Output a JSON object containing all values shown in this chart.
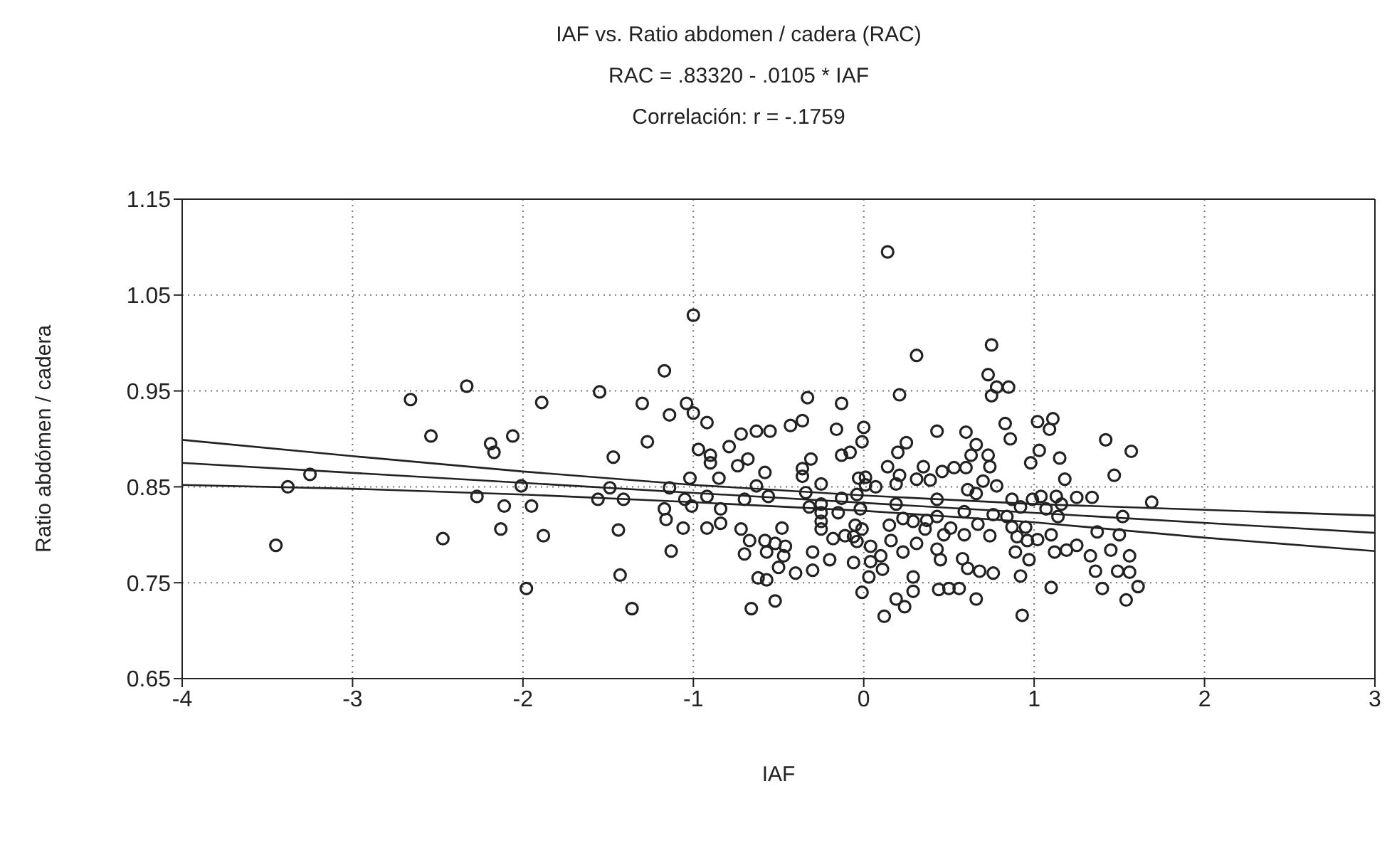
{
  "chart_data": {
    "type": "scatter",
    "title": "IAF vs. Ratio abdomen / cadera (RAC)",
    "subtitle": "RAC = .83320 - .0105 * IAF",
    "annotations": [
      "Correlación: r = -.1759"
    ],
    "xlabel": "IAF",
    "ylabel": "Ratio abdómen / cadera",
    "xlim": [
      -4,
      3
    ],
    "xticks": [
      -4,
      -3,
      -2,
      -1,
      0,
      1,
      2,
      3
    ],
    "ylim": [
      0.65,
      1.15
    ],
    "yticks": [
      {
        "value": 0.65,
        "label": "0.65"
      },
      {
        "value": 0.75,
        "label": "0.75"
      },
      {
        "value": 0.85,
        "label": "0.85"
      },
      {
        "value": 0.95,
        "label": "0.95"
      },
      {
        "value": 1.05,
        "label": "1.05"
      },
      {
        "value": 1.15,
        "label": "1.15"
      }
    ],
    "grid": true,
    "legend": false,
    "series": [
      {
        "marker": "circle",
        "color": "#222222",
        "x": [
          -3.45,
          -3.38,
          -3.25,
          -2.66,
          -2.54,
          -2.47,
          -2.33,
          -2.27,
          -2.19,
          -2.17,
          -2.13,
          -2.11,
          -2.06,
          -2.01,
          -1.98,
          -1.95,
          -1.89,
          -1.88,
          -1.55,
          -1.47,
          -1.49,
          -1.56,
          -1.41,
          -1.44,
          -1.43,
          -1.36,
          -1.3,
          -1.27,
          -1.17,
          -1.14,
          -1.14,
          -1.17,
          -1.16,
          -1.13,
          -1.05,
          -1.06,
          -1.04,
          -1.0,
          -1.0,
          -1.02,
          -1.01,
          -0.97,
          -0.92,
          -0.9,
          -0.9,
          -0.92,
          -0.92,
          -0.85,
          -0.84,
          -0.84,
          -0.79,
          -0.74,
          -0.72,
          -0.68,
          -0.7,
          -0.72,
          -0.67,
          -0.7,
          -0.63,
          -0.63,
          -0.58,
          -0.58,
          -0.57,
          -0.55,
          -0.56,
          -0.62,
          -0.57,
          -0.66,
          -0.52,
          -0.48,
          -0.52,
          -0.46,
          -0.47,
          -0.5,
          -0.43,
          -0.36,
          -0.4,
          -0.33,
          -0.31,
          -0.36,
          -0.36,
          -0.34,
          -0.32,
          -0.3,
          -0.3,
          -0.25,
          -0.25,
          -0.25,
          -0.25,
          -0.25,
          -0.2,
          -0.18,
          -0.15,
          -0.13,
          -0.13,
          -0.13,
          -0.16,
          -0.11,
          -0.08,
          -0.06,
          -0.06,
          -0.05,
          -0.04,
          0.14,
          0.0,
          -0.01,
          -0.03,
          0.01,
          0.01,
          0.07,
          -0.04,
          -0.02,
          -0.01,
          0.04,
          0.04,
          0.1,
          0.11,
          0.03,
          -0.01,
          0.12,
          0.14,
          0.15,
          0.16,
          0.19,
          0.19,
          0.2,
          0.21,
          0.21,
          0.19,
          0.23,
          0.23,
          0.24,
          0.25,
          0.29,
          0.29,
          0.29,
          0.31,
          0.31,
          0.31,
          0.35,
          0.36,
          0.37,
          0.39,
          0.43,
          0.43,
          0.43,
          0.43,
          0.45,
          0.44,
          0.46,
          0.47,
          0.51,
          0.5,
          0.53,
          0.56,
          0.58,
          0.59,
          0.59,
          0.6,
          0.6,
          0.61,
          0.61,
          0.63,
          0.66,
          0.66,
          0.66,
          0.67,
          0.68,
          0.7,
          0.73,
          0.73,
          0.75,
          0.74,
          0.74,
          0.75,
          0.76,
          0.76,
          0.78,
          0.78,
          0.83,
          0.84,
          0.85,
          0.86,
          0.87,
          0.87,
          0.89,
          0.9,
          0.92,
          0.92,
          0.93,
          0.95,
          0.96,
          0.97,
          0.98,
          0.99,
          1.02,
          1.03,
          1.02,
          1.04,
          1.07,
          1.09,
          1.11,
          1.1,
          1.1,
          1.12,
          1.13,
          1.14,
          1.15,
          1.16,
          1.18,
          1.19,
          1.25,
          1.25,
          1.33,
          1.34,
          1.36,
          1.37,
          1.4,
          1.42,
          1.45,
          1.47,
          1.49,
          1.5,
          1.52,
          1.54,
          1.56,
          1.57,
          1.56,
          1.61,
          1.69
        ],
        "values": [
          0.789,
          0.85,
          0.863,
          0.941,
          0.903,
          0.796,
          0.955,
          0.84,
          0.895,
          0.886,
          0.806,
          0.83,
          0.903,
          0.851,
          0.744,
          0.83,
          0.938,
          0.799,
          0.949,
          0.881,
          0.849,
          0.837,
          0.837,
          0.805,
          0.758,
          0.723,
          0.937,
          0.897,
          0.971,
          0.925,
          0.849,
          0.827,
          0.816,
          0.783,
          0.837,
          0.807,
          0.937,
          0.927,
          1.029,
          0.859,
          0.83,
          0.889,
          0.917,
          0.883,
          0.875,
          0.84,
          0.807,
          0.859,
          0.827,
          0.812,
          0.892,
          0.872,
          0.905,
          0.879,
          0.837,
          0.806,
          0.794,
          0.78,
          0.908,
          0.851,
          0.865,
          0.794,
          0.782,
          0.908,
          0.84,
          0.755,
          0.753,
          0.723,
          0.731,
          0.807,
          0.791,
          0.788,
          0.778,
          0.766,
          0.914,
          0.919,
          0.76,
          0.943,
          0.879,
          0.869,
          0.861,
          0.844,
          0.829,
          0.782,
          0.763,
          0.853,
          0.832,
          0.823,
          0.814,
          0.806,
          0.774,
          0.796,
          0.823,
          0.838,
          0.883,
          0.937,
          0.91,
          0.799,
          0.886,
          0.771,
          0.798,
          0.81,
          0.793,
          1.095,
          0.912,
          0.897,
          0.859,
          0.86,
          0.852,
          0.85,
          0.842,
          0.827,
          0.806,
          0.788,
          0.772,
          0.778,
          0.764,
          0.756,
          0.74,
          0.715,
          0.871,
          0.81,
          0.794,
          0.853,
          0.832,
          0.886,
          0.862,
          0.946,
          0.733,
          0.782,
          0.817,
          0.725,
          0.896,
          0.814,
          0.756,
          0.741,
          0.791,
          0.858,
          0.987,
          0.871,
          0.806,
          0.815,
          0.857,
          0.908,
          0.837,
          0.819,
          0.785,
          0.774,
          0.743,
          0.866,
          0.8,
          0.807,
          0.744,
          0.87,
          0.744,
          0.775,
          0.8,
          0.824,
          0.87,
          0.907,
          0.847,
          0.765,
          0.883,
          0.733,
          0.894,
          0.843,
          0.811,
          0.762,
          0.856,
          0.967,
          0.883,
          0.998,
          0.871,
          0.799,
          0.945,
          0.76,
          0.821,
          0.851,
          0.954,
          0.916,
          0.819,
          0.954,
          0.9,
          0.837,
          0.808,
          0.782,
          0.798,
          0.829,
          0.757,
          0.716,
          0.808,
          0.794,
          0.774,
          0.875,
          0.837,
          0.918,
          0.888,
          0.795,
          0.84,
          0.827,
          0.91,
          0.921,
          0.745,
          0.8,
          0.782,
          0.84,
          0.819,
          0.88,
          0.832,
          0.858,
          0.784,
          0.839,
          0.789,
          0.778,
          0.839,
          0.762,
          0.803,
          0.744,
          0.899,
          0.784,
          0.862,
          0.762,
          0.8,
          0.819,
          0.732,
          0.778,
          0.887,
          0.761,
          0.746,
          0.834
        ]
      },
      {
        "type": "line",
        "marker": "none",
        "color": "#222222",
        "x": [
          -4,
          3
        ],
        "values": [
          0.875,
          0.802
        ]
      },
      {
        "type": "line",
        "marker": "none",
        "color": "#222222",
        "x": [
          -4,
          -3,
          -2,
          -1,
          0,
          1,
          2,
          3
        ],
        "values": [
          0.899,
          0.882,
          0.866,
          0.852,
          0.841,
          0.832,
          0.826,
          0.82
        ]
      },
      {
        "type": "line",
        "marker": "none",
        "color": "#222222",
        "x": [
          -4,
          -3,
          -2,
          -1,
          0,
          1,
          2,
          3
        ],
        "values": [
          0.852,
          0.848,
          0.842,
          0.834,
          0.825,
          0.813,
          0.797,
          0.783
        ]
      }
    ]
  }
}
